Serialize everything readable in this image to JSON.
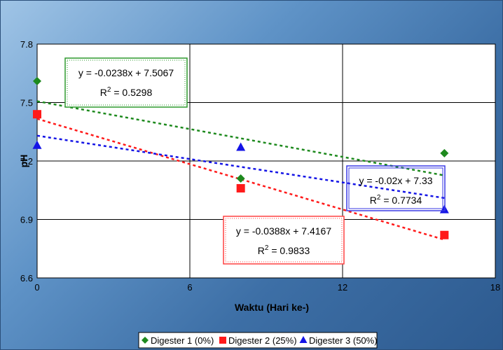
{
  "chart_data": {
    "type": "scatter",
    "title": "",
    "xlabel": "Waktu (Hari ke-)",
    "ylabel": "pH",
    "xlim": [
      0,
      18
    ],
    "ylim": [
      6.6,
      7.8
    ],
    "x_ticks": [
      "0",
      "6",
      "12",
      "18"
    ],
    "y_ticks": [
      "6.6",
      "6.9",
      "7.2",
      "7.5",
      "7.8"
    ],
    "grid": true,
    "legend_position": "bottom",
    "series": [
      {
        "name": "Digester 1 (0%)",
        "marker": "diamond",
        "color": "#1e8a1e",
        "x": [
          0,
          8,
          16
        ],
        "y": [
          7.61,
          7.11,
          7.24
        ],
        "trendline": {
          "slope": -0.0238,
          "intercept": 7.5067,
          "equation": "y = -0.0238x + 7.5067",
          "r2_prefix": "R",
          "r2_sup": "2",
          "r2_value": " = 0.5298",
          "box_color": "#2e9a2e"
        }
      },
      {
        "name": "Digester 2 (25%)",
        "marker": "square",
        "color": "#ff1a1a",
        "x": [
          0,
          8,
          16
        ],
        "y": [
          7.44,
          7.06,
          6.82
        ],
        "trendline": {
          "slope": -0.0388,
          "intercept": 7.4167,
          "equation": "y = -0.0388x + 7.4167",
          "r2_prefix": "R",
          "r2_sup": "2",
          "r2_value": " = 0.9833",
          "box_color": "#ff4040"
        }
      },
      {
        "name": "Digester 3 (50%)",
        "marker": "triangle",
        "color": "#1414e6",
        "x": [
          0,
          8,
          16
        ],
        "y": [
          7.28,
          7.27,
          6.95
        ],
        "trendline": {
          "slope": -0.02,
          "intercept": 7.33,
          "equation": "y = -0.02x + 7.33",
          "r2_prefix": "R",
          "r2_sup": "2",
          "r2_value": " = 0.7734",
          "box_color": "#3a3ae6"
        }
      }
    ]
  }
}
